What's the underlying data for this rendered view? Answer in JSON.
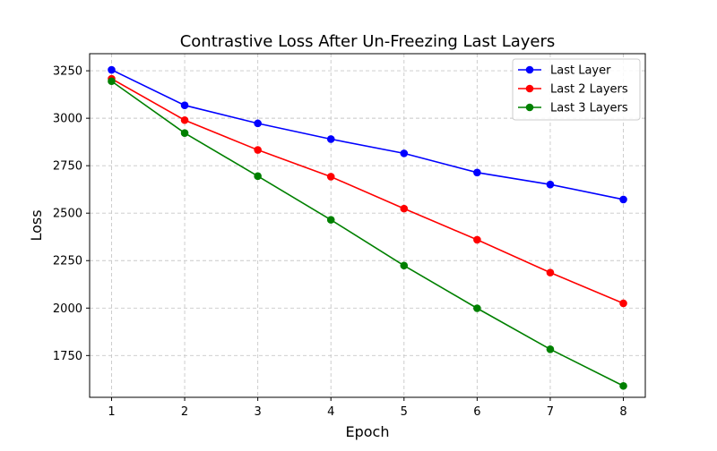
{
  "chart_data": {
    "type": "line",
    "title": "Contrastive Loss After Un-Freezing Last Layers",
    "xlabel": "Epoch",
    "ylabel": "Loss",
    "x": [
      1,
      2,
      3,
      4,
      5,
      6,
      7,
      8
    ],
    "xticks": [
      "1",
      "2",
      "3",
      "4",
      "5",
      "6",
      "7",
      "8"
    ],
    "yticks": [
      "1750",
      "2000",
      "2250",
      "2500",
      "2750",
      "3000",
      "3250"
    ],
    "ytick_values": [
      1750,
      2000,
      2250,
      2500,
      2750,
      3000,
      3250
    ],
    "xlim": [
      0.7,
      8.3
    ],
    "ylim": [
      1530,
      3340
    ],
    "grid": true,
    "legend_position": "top-right",
    "series": [
      {
        "name": "Last Layer",
        "color": "#0000ff",
        "values": [
          3255,
          3068,
          2973,
          2890,
          2815,
          2714,
          2651,
          2572
        ]
      },
      {
        "name": "Last 2 Layers",
        "color": "#ff0000",
        "values": [
          3208,
          2990,
          2833,
          2692,
          2524,
          2360,
          2187,
          2025
        ]
      },
      {
        "name": "Last 3 Layers",
        "color": "#008000",
        "values": [
          3195,
          2922,
          2695,
          2465,
          2224,
          1999,
          1783,
          1590
        ]
      }
    ]
  }
}
